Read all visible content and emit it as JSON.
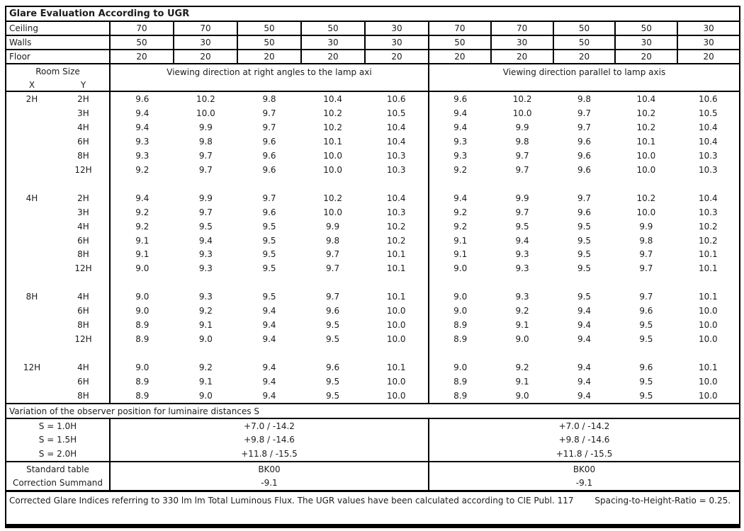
{
  "title": "Glare Evaluation According to UGR",
  "colors": {
    "border": "#000000",
    "text": "#1c1c1c",
    "background": "#ffffff"
  },
  "surfaces": {
    "rows": [
      {
        "label": "Ceiling",
        "values": [
          "70",
          "70",
          "50",
          "50",
          "30",
          "70",
          "70",
          "50",
          "50",
          "30"
        ]
      },
      {
        "label": "Walls",
        "values": [
          "50",
          "30",
          "50",
          "30",
          "30",
          "50",
          "30",
          "50",
          "30",
          "30"
        ]
      },
      {
        "label": "Floor",
        "values": [
          "20",
          "20",
          "20",
          "20",
          "20",
          "20",
          "20",
          "20",
          "20",
          "20"
        ]
      }
    ]
  },
  "header": {
    "room_size_label": "Room Size",
    "x_label": "X",
    "y_label": "Y",
    "right_angle_label": "Viewing direction at right angles to the lamp axi",
    "parallel_label": "Viewing direction parallel to lamp axis"
  },
  "chart_data": {
    "type": "table",
    "title": "Glare Evaluation According to UGR",
    "groups": [
      {
        "x": "2H",
        "rows": [
          {
            "y": "2H",
            "right_angle": [
              "9.6",
              "10.2",
              "9.8",
              "10.4",
              "10.6"
            ],
            "parallel": [
              "9.6",
              "10.2",
              "9.8",
              "10.4",
              "10.6"
            ]
          },
          {
            "y": "3H",
            "right_angle": [
              "9.4",
              "10.0",
              "9.7",
              "10.2",
              "10.5"
            ],
            "parallel": [
              "9.4",
              "10.0",
              "9.7",
              "10.2",
              "10.5"
            ]
          },
          {
            "y": "4H",
            "right_angle": [
              "9.4",
              "9.9",
              "9.7",
              "10.2",
              "10.4"
            ],
            "parallel": [
              "9.4",
              "9.9",
              "9.7",
              "10.2",
              "10.4"
            ]
          },
          {
            "y": "6H",
            "right_angle": [
              "9.3",
              "9.8",
              "9.6",
              "10.1",
              "10.4"
            ],
            "parallel": [
              "9.3",
              "9.8",
              "9.6",
              "10.1",
              "10.4"
            ]
          },
          {
            "y": "8H",
            "right_angle": [
              "9.3",
              "9.7",
              "9.6",
              "10.0",
              "10.3"
            ],
            "parallel": [
              "9.3",
              "9.7",
              "9.6",
              "10.0",
              "10.3"
            ]
          },
          {
            "y": "12H",
            "right_angle": [
              "9.2",
              "9.7",
              "9.6",
              "10.0",
              "10.3"
            ],
            "parallel": [
              "9.2",
              "9.7",
              "9.6",
              "10.0",
              "10.3"
            ]
          }
        ]
      },
      {
        "x": "4H",
        "rows": [
          {
            "y": "2H",
            "right_angle": [
              "9.4",
              "9.9",
              "9.7",
              "10.2",
              "10.4"
            ],
            "parallel": [
              "9.4",
              "9.9",
              "9.7",
              "10.2",
              "10.4"
            ]
          },
          {
            "y": "3H",
            "right_angle": [
              "9.2",
              "9.7",
              "9.6",
              "10.0",
              "10.3"
            ],
            "parallel": [
              "9.2",
              "9.7",
              "9.6",
              "10.0",
              "10.3"
            ]
          },
          {
            "y": "4H",
            "right_angle": [
              "9.2",
              "9.5",
              "9.5",
              "9.9",
              "10.2"
            ],
            "parallel": [
              "9.2",
              "9.5",
              "9.5",
              "9.9",
              "10.2"
            ]
          },
          {
            "y": "6H",
            "right_angle": [
              "9.1",
              "9.4",
              "9.5",
              "9.8",
              "10.2"
            ],
            "parallel": [
              "9.1",
              "9.4",
              "9.5",
              "9.8",
              "10.2"
            ]
          },
          {
            "y": "8H",
            "right_angle": [
              "9.1",
              "9.3",
              "9.5",
              "9.7",
              "10.1"
            ],
            "parallel": [
              "9.1",
              "9.3",
              "9.5",
              "9.7",
              "10.1"
            ]
          },
          {
            "y": "12H",
            "right_angle": [
              "9.0",
              "9.3",
              "9.5",
              "9.7",
              "10.1"
            ],
            "parallel": [
              "9.0",
              "9.3",
              "9.5",
              "9.7",
              "10.1"
            ]
          }
        ]
      },
      {
        "x": "8H",
        "rows": [
          {
            "y": "4H",
            "right_angle": [
              "9.0",
              "9.3",
              "9.5",
              "9.7",
              "10.1"
            ],
            "parallel": [
              "9.0",
              "9.3",
              "9.5",
              "9.7",
              "10.1"
            ]
          },
          {
            "y": "6H",
            "right_angle": [
              "9.0",
              "9.2",
              "9.4",
              "9.6",
              "10.0"
            ],
            "parallel": [
              "9.0",
              "9.2",
              "9.4",
              "9.6",
              "10.0"
            ]
          },
          {
            "y": "8H",
            "right_angle": [
              "8.9",
              "9.1",
              "9.4",
              "9.5",
              "10.0"
            ],
            "parallel": [
              "8.9",
              "9.1",
              "9.4",
              "9.5",
              "10.0"
            ]
          },
          {
            "y": "12H",
            "right_angle": [
              "8.9",
              "9.0",
              "9.4",
              "9.5",
              "10.0"
            ],
            "parallel": [
              "8.9",
              "9.0",
              "9.4",
              "9.5",
              "10.0"
            ]
          }
        ]
      },
      {
        "x": "12H",
        "rows": [
          {
            "y": "4H",
            "right_angle": [
              "9.0",
              "9.2",
              "9.4",
              "9.6",
              "10.1"
            ],
            "parallel": [
              "9.0",
              "9.2",
              "9.4",
              "9.6",
              "10.1"
            ]
          },
          {
            "y": "6H",
            "right_angle": [
              "8.9",
              "9.1",
              "9.4",
              "9.5",
              "10.0"
            ],
            "parallel": [
              "8.9",
              "9.1",
              "9.4",
              "9.5",
              "10.0"
            ]
          },
          {
            "y": "8H",
            "right_angle": [
              "8.9",
              "9.0",
              "9.4",
              "9.5",
              "10.0"
            ],
            "parallel": [
              "8.9",
              "9.0",
              "9.4",
              "9.5",
              "10.0"
            ]
          }
        ]
      }
    ]
  },
  "variation": {
    "header": "Variation of the observer position for luminaire distances S",
    "rows": [
      {
        "label": "S = 1.0H",
        "right_angle": "+7.0 / -14.2",
        "parallel": "+7.0 / -14.2"
      },
      {
        "label": "S = 1.5H",
        "right_angle": "+9.8 / -14.6",
        "parallel": "+9.8 / -14.6"
      },
      {
        "label": "S = 2.0H",
        "right_angle": "+11.8 / -15.5",
        "parallel": "+11.8 / -15.5"
      }
    ]
  },
  "summary": {
    "rows": [
      {
        "label": "Standard table",
        "right_angle": "BK00",
        "parallel": "BK00"
      },
      {
        "label": "Correction Summand",
        "right_angle": "-9.1",
        "parallel": "-9.1"
      }
    ]
  },
  "footer": {
    "note": "Corrected Glare Indices referring to 330 lm lm Total Luminous Flux. The UGR values have been calculated according to CIE Publ. 117",
    "ratio": "Spacing-to-Height-Ratio = 0.25."
  }
}
